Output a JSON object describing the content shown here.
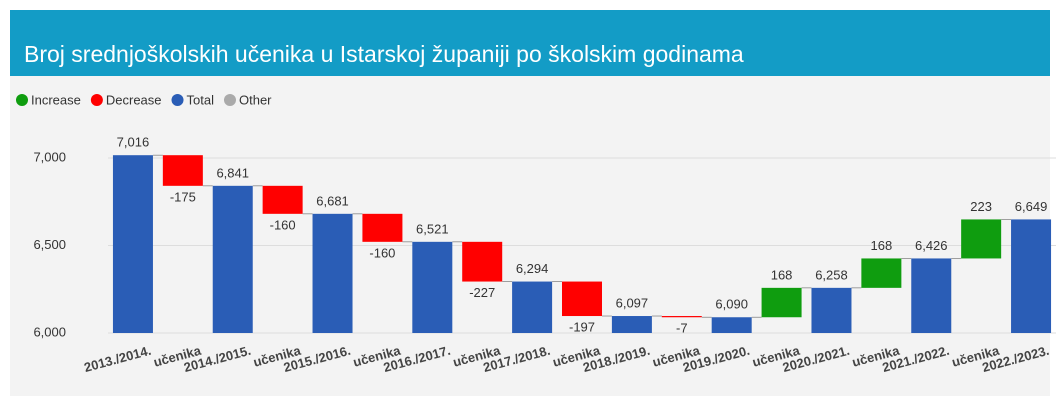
{
  "chart_data": {
    "type": "waterfall",
    "title": "Broj srednjoškolskih učenika u Istarskoj županiji po školskim godinama",
    "legend": [
      {
        "name": "Increase",
        "color": "#0f9d0f"
      },
      {
        "name": "Decrease",
        "color": "#ff0000"
      },
      {
        "name": "Total",
        "color": "#2a5db6"
      },
      {
        "name": "Other",
        "color": "#aaaaaa"
      }
    ],
    "categories": [
      "2013./2014.",
      "učenika",
      "2014./2015.",
      "učenika",
      "2015./2016.",
      "učenika",
      "2016./2017.",
      "učenika",
      "2017./2018.",
      "učenika",
      "2018./2019.",
      "učenika",
      "2019./2020.",
      "učenika",
      "2020./2021.",
      "učenika",
      "2021./2022.",
      "učenika",
      "2022./2023."
    ],
    "kinds": [
      "Total",
      "Decrease",
      "Total",
      "Decrease",
      "Total",
      "Decrease",
      "Total",
      "Decrease",
      "Total",
      "Decrease",
      "Total",
      "Decrease",
      "Total",
      "Increase",
      "Total",
      "Increase",
      "Total",
      "Increase",
      "Total"
    ],
    "values": [
      7016,
      -175,
      6841,
      -160,
      6681,
      -160,
      6521,
      -227,
      6294,
      -197,
      6097,
      -7,
      6090,
      168,
      6258,
      168,
      6426,
      223,
      6649
    ],
    "value_labels": [
      "7,016",
      "-175",
      "6,841",
      "-160",
      "6,681",
      "-160",
      "6,521",
      "-227",
      "6,294",
      "-197",
      "6,097",
      "-7",
      "6,090",
      "168",
      "6,258",
      "168",
      "6,426",
      "223",
      "6,649"
    ],
    "ylim": [
      6000,
      7100
    ],
    "yticks": [
      {
        "value": 6000,
        "label": "6,000"
      },
      {
        "value": 6500,
        "label": "6,500"
      },
      {
        "value": 7000,
        "label": "7,000"
      }
    ],
    "grid": true
  }
}
